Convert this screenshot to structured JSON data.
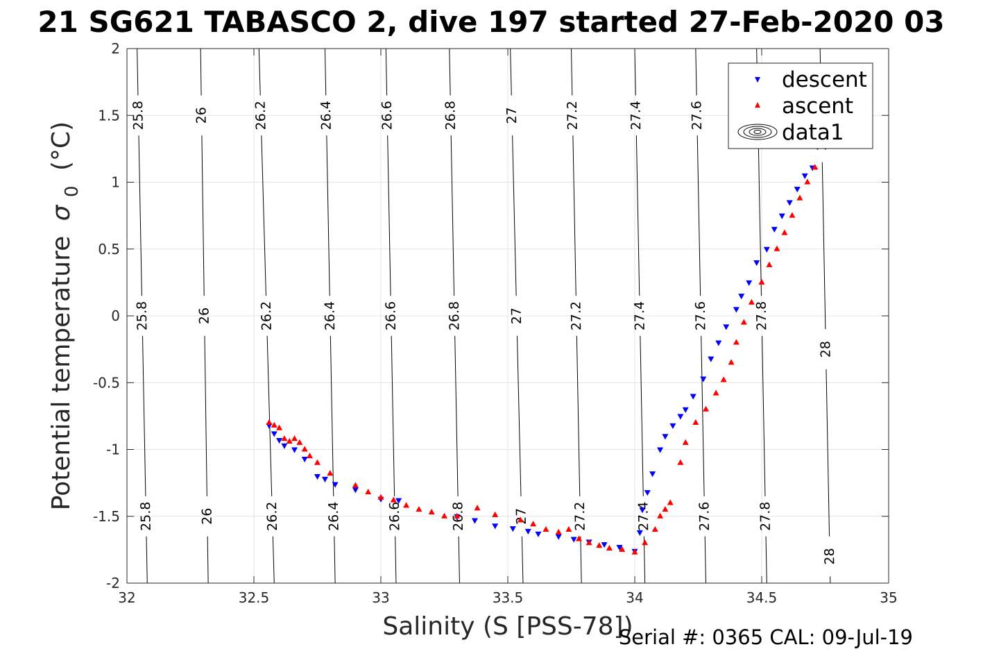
{
  "chart_data": {
    "type": "scatter",
    "title": "21 SG621 TABASCO 2, dive 197 started 27-Feb-2020 03",
    "xlabel": "Salinity (S [PSS-78])",
    "ylabel": "Potential temperature",
    "ylabel_symbol": "σ",
    "ylabel_subscript": "0",
    "ylabel_unit": "(°C)",
    "footer": "Serial #: 0365  CAL: 09-Jul-19",
    "xlim": [
      32,
      35
    ],
    "ylim": [
      -2,
      2
    ],
    "xticks": [
      32,
      32.5,
      33,
      33.5,
      34,
      34.5,
      35
    ],
    "xtick_labels": [
      "32",
      "32.5",
      "33",
      "33.5",
      "34",
      "34.5",
      "35"
    ],
    "yticks": [
      -2,
      -1.5,
      -1,
      -0.5,
      0,
      0.5,
      1,
      1.5,
      2
    ],
    "ytick_labels": [
      "-2",
      "-1.5",
      "-1",
      "-0.5",
      "0",
      "0.5",
      "1",
      "1.5",
      "2"
    ],
    "grid": true,
    "legend_position": "top-right",
    "legend": [
      {
        "label": "descent",
        "marker": "triangle-down",
        "color": "#0000ff"
      },
      {
        "label": "ascent",
        "marker": "triangle-up",
        "color": "#ff0000"
      },
      {
        "label": "data1",
        "marker": "contour",
        "color": "#000000"
      }
    ],
    "contours": {
      "series_name": "data1",
      "color": "#000000",
      "levels": [
        {
          "label": "25.8",
          "x_top": 32.04,
          "x_bottom": 32.08,
          "label_y": [
            1.5,
            0,
            -1.5
          ]
        },
        {
          "label": "26",
          "x_top": 32.29,
          "x_bottom": 32.32,
          "label_y": [
            1.5,
            0,
            -1.5
          ]
        },
        {
          "label": "26.2",
          "x_top": 32.52,
          "x_bottom": 32.58,
          "label_y": [
            1.5,
            0,
            -1.5
          ]
        },
        {
          "label": "26.4",
          "x_top": 32.78,
          "x_bottom": 32.82,
          "label_y": [
            1.5,
            0,
            -1.5
          ]
        },
        {
          "label": "26.6",
          "x_top": 33.02,
          "x_bottom": 33.06,
          "label_y": [
            1.5,
            0,
            -1.5
          ]
        },
        {
          "label": "26.8",
          "x_top": 33.27,
          "x_bottom": 33.31,
          "label_y": [
            1.5,
            0,
            -1.5
          ]
        },
        {
          "label": "27",
          "x_top": 33.51,
          "x_bottom": 33.56,
          "label_y": [
            1.5,
            0,
            -1.5
          ]
        },
        {
          "label": "27.2",
          "x_top": 33.75,
          "x_bottom": 33.79,
          "label_y": [
            1.5,
            0,
            -1.5
          ]
        },
        {
          "label": "27.4",
          "x_top": 34.0,
          "x_bottom": 34.04,
          "label_y": [
            1.5,
            0,
            -1.5
          ]
        },
        {
          "label": "27.6",
          "x_top": 34.24,
          "x_bottom": 34.28,
          "label_y": [
            1.5,
            0,
            -1.5
          ]
        },
        {
          "label": "27.8",
          "x_top": 34.48,
          "x_bottom": 34.52,
          "label_y": [
            1.5,
            0,
            -1.5
          ]
        },
        {
          "label": "28",
          "x_top": 34.73,
          "x_bottom": 34.77,
          "label_y": [
            1.3,
            -0.25,
            -1.8
          ]
        }
      ]
    },
    "series": [
      {
        "name": "descent",
        "marker": "triangle-down",
        "color": "#0000ff",
        "points": [
          [
            32.56,
            -0.82
          ],
          [
            32.58,
            -0.88
          ],
          [
            32.6,
            -0.93
          ],
          [
            32.62,
            -0.97
          ],
          [
            32.66,
            -1.0
          ],
          [
            32.7,
            -1.07
          ],
          [
            32.75,
            -1.2
          ],
          [
            32.78,
            -1.22
          ],
          [
            32.82,
            -1.26
          ],
          [
            32.9,
            -1.3
          ],
          [
            33.0,
            -1.37
          ],
          [
            33.07,
            -1.38
          ],
          [
            33.3,
            -1.5
          ],
          [
            33.37,
            -1.53
          ],
          [
            33.45,
            -1.57
          ],
          [
            33.52,
            -1.59
          ],
          [
            33.58,
            -1.61
          ],
          [
            33.62,
            -1.63
          ],
          [
            33.7,
            -1.65
          ],
          [
            33.76,
            -1.67
          ],
          [
            33.82,
            -1.69
          ],
          [
            33.88,
            -1.71
          ],
          [
            33.94,
            -1.73
          ],
          [
            34.0,
            -1.76
          ],
          [
            34.02,
            -1.62
          ],
          [
            34.03,
            -1.45
          ],
          [
            34.05,
            -1.32
          ],
          [
            34.07,
            -1.18
          ],
          [
            34.1,
            -1.0
          ],
          [
            34.12,
            -0.9
          ],
          [
            34.15,
            -0.82
          ],
          [
            34.18,
            -0.75
          ],
          [
            34.2,
            -0.7
          ],
          [
            34.23,
            -0.6
          ],
          [
            34.27,
            -0.47
          ],
          [
            34.3,
            -0.32
          ],
          [
            34.33,
            -0.2
          ],
          [
            34.36,
            -0.08
          ],
          [
            34.4,
            0.05
          ],
          [
            34.42,
            0.15
          ],
          [
            34.45,
            0.25
          ],
          [
            34.48,
            0.4
          ],
          [
            34.52,
            0.5
          ],
          [
            34.55,
            0.65
          ],
          [
            34.58,
            0.75
          ],
          [
            34.61,
            0.85
          ],
          [
            34.64,
            0.95
          ],
          [
            34.67,
            1.05
          ],
          [
            34.7,
            1.11
          ]
        ]
      },
      {
        "name": "ascent",
        "marker": "triangle-up",
        "color": "#ff0000",
        "points": [
          [
            32.56,
            -0.8
          ],
          [
            32.58,
            -0.82
          ],
          [
            32.6,
            -0.84
          ],
          [
            32.62,
            -0.92
          ],
          [
            32.64,
            -0.94
          ],
          [
            32.66,
            -0.92
          ],
          [
            32.68,
            -0.95
          ],
          [
            32.7,
            -1.0
          ],
          [
            32.72,
            -1.05
          ],
          [
            32.75,
            -1.1
          ],
          [
            32.8,
            -1.18
          ],
          [
            32.9,
            -1.27
          ],
          [
            32.95,
            -1.32
          ],
          [
            33.0,
            -1.36
          ],
          [
            33.05,
            -1.38
          ],
          [
            33.1,
            -1.42
          ],
          [
            33.15,
            -1.45
          ],
          [
            33.2,
            -1.47
          ],
          [
            33.25,
            -1.5
          ],
          [
            33.3,
            -1.5
          ],
          [
            33.38,
            -1.44
          ],
          [
            33.45,
            -1.49
          ],
          [
            33.55,
            -1.53
          ],
          [
            33.6,
            -1.56
          ],
          [
            33.65,
            -1.6
          ],
          [
            33.7,
            -1.62
          ],
          [
            33.74,
            -1.6
          ],
          [
            33.78,
            -1.67
          ],
          [
            33.82,
            -1.7
          ],
          [
            33.86,
            -1.72
          ],
          [
            33.9,
            -1.74
          ],
          [
            33.95,
            -1.75
          ],
          [
            34.0,
            -1.77
          ],
          [
            34.04,
            -1.7
          ],
          [
            34.08,
            -1.6
          ],
          [
            34.1,
            -1.5
          ],
          [
            34.12,
            -1.45
          ],
          [
            34.14,
            -1.4
          ],
          [
            34.18,
            -1.1
          ],
          [
            34.2,
            -0.95
          ],
          [
            34.24,
            -0.8
          ],
          [
            34.28,
            -0.7
          ],
          [
            34.32,
            -0.58
          ],
          [
            34.35,
            -0.48
          ],
          [
            34.38,
            -0.35
          ],
          [
            34.4,
            -0.2
          ],
          [
            34.43,
            -0.05
          ],
          [
            34.46,
            0.1
          ],
          [
            34.5,
            0.25
          ],
          [
            34.53,
            0.38
          ],
          [
            34.56,
            0.5
          ],
          [
            34.59,
            0.62
          ],
          [
            34.62,
            0.75
          ],
          [
            34.65,
            0.88
          ],
          [
            34.68,
            1.0
          ],
          [
            34.71,
            1.11
          ]
        ]
      }
    ]
  }
}
